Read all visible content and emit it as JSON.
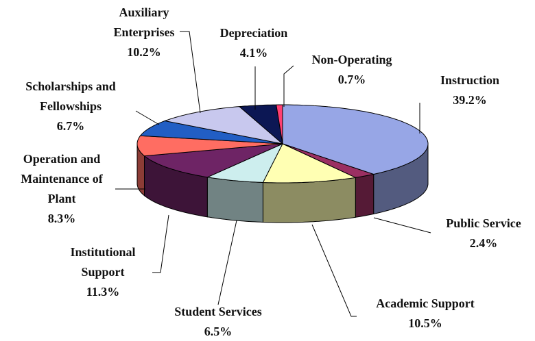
{
  "chart_data": {
    "type": "pie3d",
    "categories": [
      "Instruction",
      "Public Service",
      "Academic Support",
      "Student Services",
      "Institutional Support",
      "Operation and Maintenance of Plant",
      "Scholarships and Fellowships",
      "Auxiliary Enterprises",
      "Depreciation",
      "Non-Operating"
    ],
    "values": [
      39.2,
      2.4,
      10.5,
      6.5,
      11.3,
      8.3,
      6.7,
      10.2,
      4.1,
      0.7
    ],
    "value_labels": [
      "39.2%",
      "2.4%",
      "10.5%",
      "6.5%",
      "11.3%",
      "8.3%",
      "6.7%",
      "10.2%",
      "4.1%",
      "0.7%"
    ],
    "colors": [
      "#97a6e6",
      "#9b2f62",
      "#ffffb3",
      "#cdeeee",
      "#6e2465",
      "#ff6d62",
      "#225ec4",
      "#c8c8ee",
      "#0c1754",
      "#ff3f72"
    ]
  }
}
